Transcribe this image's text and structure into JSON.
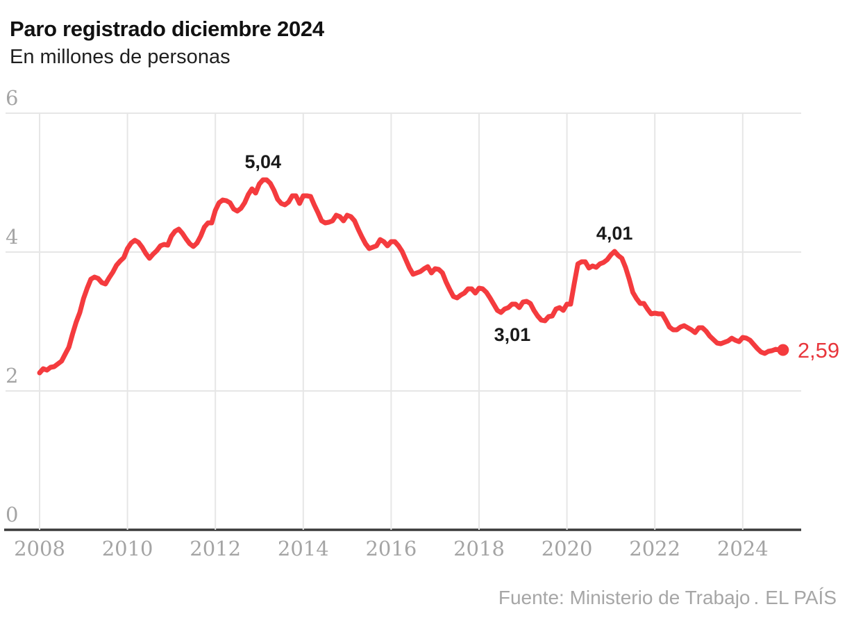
{
  "header": {
    "title": "Paro registrado diciembre 2024",
    "subtitle": "En millones de personas"
  },
  "footer": {
    "source": "Fuente: Ministerio de Trabajo",
    "separator": ".",
    "credit": "EL PAÍS"
  },
  "colors": {
    "line": "#f43b3e",
    "end_label": "#e8363c",
    "annotation": "#1a1a1a",
    "grid": "#e6e6e6",
    "axis_baseline": "#3a3a3a",
    "tick_label": "#a4a4a4",
    "footer_text": "#a6a6a6",
    "title_text": "#111111",
    "background": "#ffffff"
  },
  "chart_data": {
    "type": "line",
    "title": "Paro registrado diciembre 2024",
    "subtitle": "En millones de personas",
    "unit": "millones de personas",
    "frequency": "monthly",
    "x_start_year": 2008,
    "xlim": [
      2008,
      2025.3
    ],
    "ylim": [
      0,
      6
    ],
    "y_ticks": [
      0,
      2,
      4,
      6
    ],
    "x_ticks": [
      2008,
      2010,
      2012,
      2014,
      2016,
      2018,
      2020,
      2022,
      2024
    ],
    "grid": true,
    "legend": "none",
    "series": [
      {
        "name": "Paro registrado (millones de personas)",
        "color": "#f43b3e",
        "months_start": "2008-01",
        "months_end": "2024-12",
        "values": [
          2.26,
          2.32,
          2.3,
          2.34,
          2.35,
          2.39,
          2.43,
          2.53,
          2.63,
          2.82,
          2.99,
          3.13,
          3.33,
          3.48,
          3.61,
          3.64,
          3.62,
          3.56,
          3.54,
          3.63,
          3.71,
          3.81,
          3.87,
          3.92,
          4.05,
          4.13,
          4.17,
          4.14,
          4.07,
          3.98,
          3.91,
          3.97,
          4.02,
          4.09,
          4.11,
          4.1,
          4.23,
          4.3,
          4.33,
          4.27,
          4.19,
          4.12,
          4.08,
          4.13,
          4.23,
          4.36,
          4.42,
          4.42,
          4.6,
          4.71,
          4.75,
          4.74,
          4.71,
          4.62,
          4.59,
          4.63,
          4.71,
          4.83,
          4.91,
          4.85,
          4.98,
          5.04,
          5.04,
          4.99,
          4.89,
          4.76,
          4.7,
          4.68,
          4.72,
          4.81,
          4.81,
          4.7,
          4.81,
          4.81,
          4.8,
          4.68,
          4.57,
          4.45,
          4.42,
          4.43,
          4.45,
          4.53,
          4.51,
          4.45,
          4.53,
          4.51,
          4.45,
          4.33,
          4.22,
          4.12,
          4.05,
          4.07,
          4.09,
          4.18,
          4.15,
          4.09,
          4.15,
          4.15,
          4.09,
          4.01,
          3.89,
          3.77,
          3.68,
          3.7,
          3.72,
          3.76,
          3.79,
          3.7,
          3.76,
          3.75,
          3.7,
          3.57,
          3.46,
          3.36,
          3.34,
          3.38,
          3.41,
          3.47,
          3.47,
          3.41,
          3.48,
          3.47,
          3.42,
          3.34,
          3.25,
          3.16,
          3.13,
          3.18,
          3.2,
          3.25,
          3.25,
          3.2,
          3.28,
          3.29,
          3.26,
          3.16,
          3.08,
          3.02,
          3.01,
          3.07,
          3.08,
          3.18,
          3.2,
          3.16,
          3.25,
          3.25,
          3.55,
          3.83,
          3.86,
          3.86,
          3.77,
          3.8,
          3.78,
          3.83,
          3.85,
          3.89,
          3.96,
          4.01,
          3.95,
          3.91,
          3.78,
          3.61,
          3.42,
          3.33,
          3.26,
          3.26,
          3.18,
          3.11,
          3.12,
          3.11,
          3.11,
          3.02,
          2.92,
          2.88,
          2.88,
          2.92,
          2.94,
          2.91,
          2.88,
          2.84,
          2.91,
          2.91,
          2.86,
          2.79,
          2.74,
          2.69,
          2.68,
          2.7,
          2.72,
          2.76,
          2.73,
          2.71,
          2.77,
          2.76,
          2.73,
          2.67,
          2.61,
          2.56,
          2.54,
          2.57,
          2.58,
          2.6,
          2.59,
          2.59
        ]
      }
    ],
    "annotations": [
      {
        "label": "5,04",
        "year": 2013.083,
        "value": 5.04,
        "placement": "above"
      },
      {
        "label": "3,01",
        "year": 2019.5,
        "value": 3.01,
        "placement": "below-left"
      },
      {
        "label": "4,01",
        "year": 2021.083,
        "value": 4.01,
        "placement": "above"
      }
    ],
    "end_label": "2,59",
    "end_value": 2.59
  }
}
